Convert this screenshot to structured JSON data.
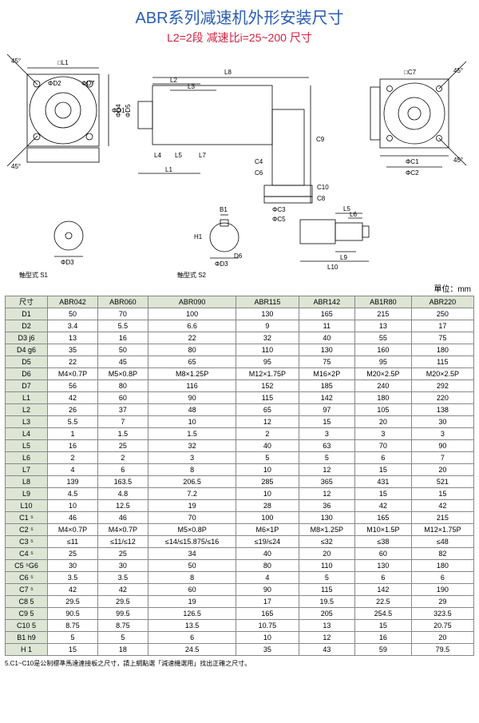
{
  "title": {
    "text": "ABR系列减速机外形安装尺寸",
    "color": "#2a5db0"
  },
  "subtitle": {
    "text": "L2=2段 减速比i=25~200 尺寸",
    "color": "#d02040"
  },
  "labels": {
    "shaft_s1": "軸型式 S1",
    "shaft_s2": "軸型式 S2",
    "unit": "單位：mm"
  },
  "diagram": {
    "front": {
      "tags": [
        "□L1",
        "ΦD2",
        "ΦD7",
        "ΦD1",
        "45°",
        "45°"
      ]
    },
    "side": {
      "tags": [
        "L8",
        "L2",
        "L3",
        "L4",
        "L5",
        "L7",
        "ΦD4",
        "ΦD5",
        "C4",
        "C6",
        "ΦC3",
        "ΦC5",
        "C10",
        "C8",
        "C9",
        "L1"
      ]
    },
    "rear": {
      "tags": [
        "□C7",
        "ΦC1",
        "ΦC2",
        "45°",
        "45°"
      ]
    },
    "s1": {
      "tags": [
        "ΦD3"
      ]
    },
    "s2": {
      "tags": [
        "B1",
        "H1",
        "D6",
        "ΦD3"
      ]
    },
    "det": {
      "tags": [
        "L6",
        "L5",
        "L9",
        "L10"
      ]
    }
  },
  "table": {
    "header_bg": "#dde5d5",
    "col0_label": "尺寸",
    "columns": [
      "ABR042",
      "ABR060",
      "ABR090",
      "ABR115",
      "ABR142",
      "AB1R80",
      "ABR220"
    ],
    "rows": [
      [
        "D1",
        "50",
        "70",
        "100",
        "130",
        "165",
        "215",
        "250"
      ],
      [
        "D2",
        "3.4",
        "5.5",
        "6.6",
        "9",
        "11",
        "13",
        "17"
      ],
      [
        "D3 j6",
        "13",
        "16",
        "22",
        "32",
        "40",
        "55",
        "75"
      ],
      [
        "D4 g6",
        "35",
        "50",
        "80",
        "110",
        "130",
        "160",
        "180"
      ],
      [
        "D5",
        "22",
        "45",
        "65",
        "95",
        "75",
        "95",
        "115"
      ],
      [
        "D6",
        "M4×0.7P",
        "M5×0.8P",
        "M8×1.25P",
        "M12×1.75P",
        "M16×2P",
        "M20×2.5P",
        "M20×2.5P"
      ],
      [
        "D7",
        "56",
        "80",
        "116",
        "152",
        "185",
        "240",
        "292"
      ],
      [
        "L1",
        "42",
        "60",
        "90",
        "115",
        "142",
        "180",
        "220"
      ],
      [
        "L2",
        "26",
        "37",
        "48",
        "65",
        "97",
        "105",
        "138"
      ],
      [
        "L3",
        "5.5",
        "7",
        "10",
        "12",
        "15",
        "20",
        "30"
      ],
      [
        "L4",
        "1",
        "1.5",
        "1.5",
        "2",
        "3",
        "3",
        "3"
      ],
      [
        "L5",
        "16",
        "25",
        "32",
        "40",
        "63",
        "70",
        "90"
      ],
      [
        "L6",
        "2",
        "2",
        "3",
        "5",
        "5",
        "6",
        "7"
      ],
      [
        "L7",
        "4",
        "6",
        "8",
        "10",
        "12",
        "15",
        "20"
      ],
      [
        "L8",
        "139",
        "163.5",
        "206.5",
        "285",
        "365",
        "431",
        "521"
      ],
      [
        "L9",
        "4.5",
        "4.8",
        "7.2",
        "10",
        "12",
        "15",
        "15"
      ],
      [
        "L10",
        "10",
        "12.5",
        "19",
        "28",
        "36",
        "42",
        "42"
      ],
      [
        "C1 ⁵",
        "46",
        "46",
        "70",
        "100",
        "130",
        "165",
        "215"
      ],
      [
        "C2 ⁵",
        "M4×0.7P",
        "M4×0.7P",
        "M5×0.8P",
        "M6×1P",
        "M8×1.25P",
        "M10×1.5P",
        "M12×1.75P"
      ],
      [
        "C3 ⁵",
        "≤11",
        "≤11/≤12",
        "≤14/≤15.875/≤16",
        "≤19/≤24",
        "≤32",
        "≤38",
        "≤48"
      ],
      [
        "C4 ⁵",
        "25",
        "25",
        "34",
        "40",
        "20",
        "60",
        "82"
      ],
      [
        "C5 ⁵G6",
        "30",
        "30",
        "50",
        "80",
        "110",
        "130",
        "180"
      ],
      [
        "C6 ⁵",
        "3.5",
        "3.5",
        "8",
        "4",
        "5",
        "6",
        "6"
      ],
      [
        "C7 ⁵",
        "42",
        "42",
        "60",
        "90",
        "115",
        "142",
        "190"
      ],
      [
        "C8 5",
        "29.5",
        "29.5",
        "19",
        "17",
        "19.5",
        "22.5",
        "29"
      ],
      [
        "C9 5",
        "90.5",
        "99.5",
        "126.5",
        "165",
        "205",
        "254.5",
        "323.5"
      ],
      [
        "C10 5",
        "8.75",
        "8.75",
        "13.5",
        "10.75",
        "13",
        "15",
        "20.75"
      ],
      [
        "B1 h9",
        "5",
        "5",
        "6",
        "10",
        "12",
        "16",
        "20"
      ],
      [
        "H 1",
        "15",
        "18",
        "24.5",
        "35",
        "43",
        "59",
        "79.5"
      ]
    ]
  },
  "footnote": "5.C1~C10是公制標準馬達連接板之尺寸，請上網點選「減速機選用」找出正確之尺寸。"
}
